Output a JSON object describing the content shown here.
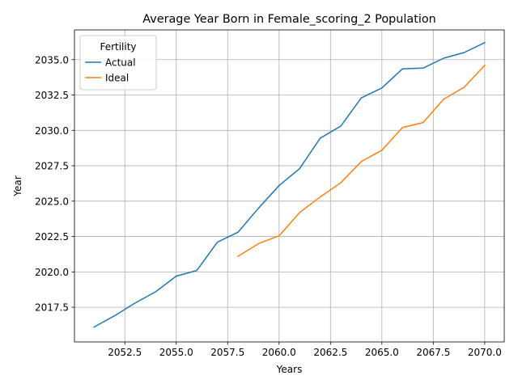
{
  "chart_data": {
    "type": "line",
    "title": "Average Year Born in Female_scoring_2 Population",
    "xlabel": "Years",
    "ylabel": "Year",
    "xlim": [
      2050.05,
      2070.95
    ],
    "ylim": [
      2015.05,
      2037.1
    ],
    "xticks": [
      2052.5,
      2055.0,
      2057.5,
      2060.0,
      2062.5,
      2065.0,
      2067.5,
      2070.0
    ],
    "xtick_labels": [
      "2052.5",
      "2055.0",
      "2057.5",
      "2060.0",
      "2062.5",
      "2065.0",
      "2067.5",
      "2070.0"
    ],
    "yticks": [
      2017.5,
      2020.0,
      2022.5,
      2025.0,
      2027.5,
      2030.0,
      2032.5,
      2035.0
    ],
    "ytick_labels": [
      "2017.5",
      "2020.0",
      "2022.5",
      "2025.0",
      "2027.5",
      "2030.0",
      "2032.5",
      "2035.0"
    ],
    "grid": true,
    "legend": {
      "title": "Fertility",
      "placement": "upper-left"
    },
    "series": [
      {
        "name": "Actual",
        "color": "#1f77b4",
        "x": [
          2051,
          2052,
          2053,
          2054,
          2055,
          2056,
          2057,
          2058,
          2059,
          2060,
          2061,
          2062,
          2063,
          2064,
          2065,
          2066,
          2067,
          2068,
          2069,
          2070
        ],
        "y": [
          2016.1,
          2016.9,
          2017.8,
          2018.6,
          2019.7,
          2020.1,
          2022.1,
          2022.8,
          2024.5,
          2026.1,
          2027.3,
          2029.45,
          2030.3,
          2032.3,
          2033.0,
          2034.35,
          2034.4,
          2035.1,
          2035.5,
          2036.2
        ]
      },
      {
        "name": "Ideal",
        "color": "#ff7f0e",
        "x": [
          2058,
          2059,
          2060,
          2061,
          2062,
          2063,
          2064,
          2065,
          2066,
          2067,
          2068,
          2069,
          2070
        ],
        "y": [
          2021.1,
          2022.0,
          2022.55,
          2024.2,
          2025.3,
          2026.3,
          2027.8,
          2028.6,
          2030.2,
          2030.55,
          2032.2,
          2033.05,
          2034.6
        ]
      }
    ]
  }
}
